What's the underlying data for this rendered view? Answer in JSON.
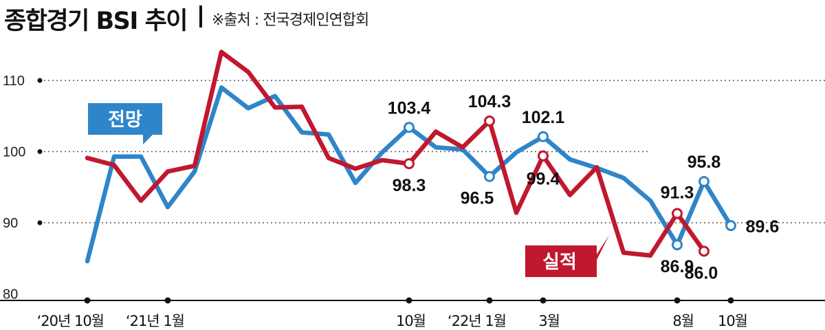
{
  "title": "종합경기 BSI 추이",
  "source": "※출처 : 전국경제인연합회",
  "colors": {
    "outlook": "#2f85c9",
    "actual": "#c0182e",
    "grid": "#555555"
  },
  "chart_data": {
    "type": "line",
    "title": "종합경기 BSI 추이",
    "ylim": [
      80,
      115
    ],
    "yticks": [
      80,
      90,
      100,
      110
    ],
    "grid": "dotted horizontal at 90, 100, 110",
    "x_labels": [
      {
        "i": 0,
        "label": "‘20년 10월"
      },
      {
        "i": 3,
        "label": "‘21년 1월"
      },
      {
        "i": 12,
        "label": "10월"
      },
      {
        "i": 15,
        "label": "‘22년 1월"
      },
      {
        "i": 17,
        "label": "3월"
      },
      {
        "i": 22,
        "label": "8월"
      },
      {
        "i": 24,
        "label": "10월"
      }
    ],
    "series": [
      {
        "name": "전망",
        "color": "#2f85c9",
        "values": [
          84.6,
          99.3,
          99.3,
          92.2,
          97.2,
          109.0,
          106.1,
          107.8,
          102.7,
          102.4,
          95.6,
          99.9,
          103.4,
          100.6,
          100.3,
          96.5,
          99.9,
          102.1,
          98.9,
          97.7,
          96.3,
          93.1,
          86.9,
          95.8,
          89.6
        ],
        "labels": {
          "12": "103.4",
          "15": "96.5",
          "17": "102.1",
          "22": "86.9",
          "23": "95.8",
          "24": "89.6"
        }
      },
      {
        "name": "실적",
        "color": "#c0182e",
        "values": [
          99.1,
          98.1,
          93.1,
          97.2,
          98.0,
          114.0,
          111.2,
          106.2,
          106.3,
          99.1,
          97.6,
          98.8,
          98.3,
          102.8,
          100.6,
          104.3,
          91.4,
          99.4,
          93.9,
          97.8,
          85.8,
          85.4,
          91.3,
          86.0
        ],
        "labels": {
          "12": "98.3",
          "15": "104.3",
          "17": "99.4",
          "22": "91.3",
          "23": "86.0"
        }
      }
    ]
  }
}
